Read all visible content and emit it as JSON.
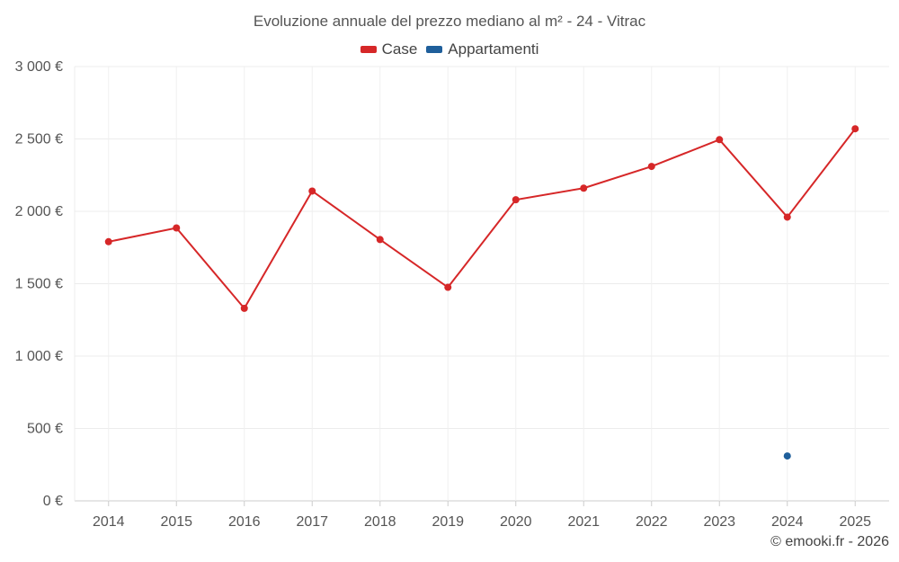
{
  "chart_data": {
    "type": "line",
    "title": "Evoluzione annuale del prezzo mediano al m² - 24 - Vitrac",
    "xlabel": "",
    "ylabel": "",
    "categories": [
      "2014",
      "2015",
      "2016",
      "2017",
      "2018",
      "2019",
      "2020",
      "2021",
      "2022",
      "2023",
      "2024",
      "2025"
    ],
    "ylim": [
      0,
      3000
    ],
    "yticks": [
      0,
      500,
      1000,
      1500,
      2000,
      2500,
      3000
    ],
    "ytick_labels": [
      "0 €",
      "500 €",
      "1 000 €",
      "1 500 €",
      "2 000 €",
      "2 500 €",
      "3 000 €"
    ],
    "grid": true,
    "legend_position": "top-center",
    "series": [
      {
        "name": "Case",
        "color": "#d62728",
        "values": [
          1790,
          1885,
          1330,
          2140,
          1805,
          1475,
          2080,
          2160,
          2310,
          2495,
          1960,
          2570
        ]
      },
      {
        "name": "Appartamenti",
        "color": "#1f5f9b",
        "values": [
          null,
          null,
          null,
          null,
          null,
          null,
          null,
          null,
          null,
          null,
          310,
          null
        ]
      }
    ]
  },
  "credit": "© emooki.fr - 2026"
}
